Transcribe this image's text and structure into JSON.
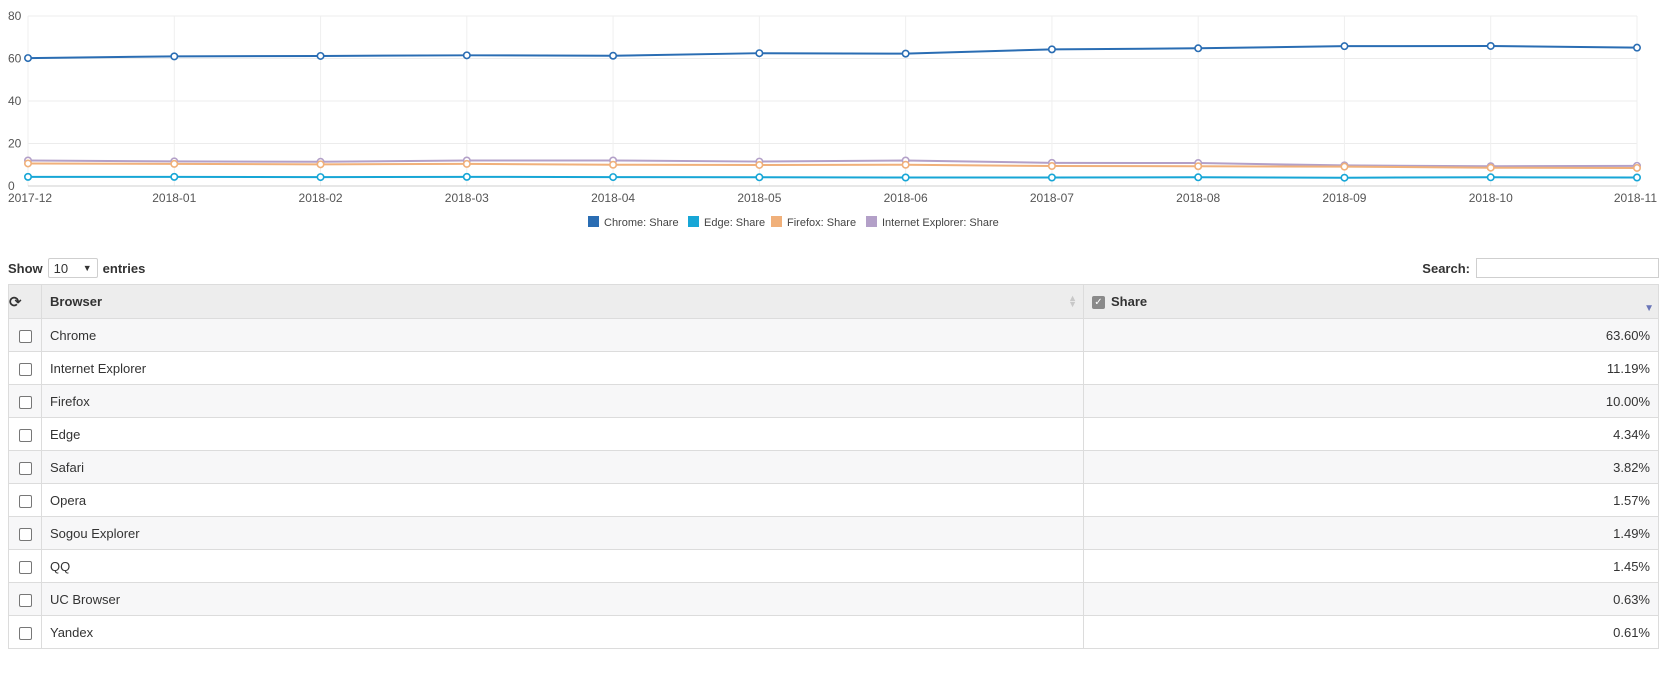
{
  "chart_data": {
    "type": "line",
    "x": [
      "2017-12",
      "2018-01",
      "2018-02",
      "2018-03",
      "2018-04",
      "2018-05",
      "2018-06",
      "2018-07",
      "2018-08",
      "2018-09",
      "2018-10",
      "2018-11"
    ],
    "ylim": [
      0,
      80
    ],
    "yticks": [
      "0",
      "20",
      "40",
      "60",
      "80"
    ],
    "grid": true,
    "legend_position": "bottom-center",
    "series": [
      {
        "name": "Chrome: Share",
        "color": "#2a6db3",
        "values": [
          60.2,
          61.0,
          61.2,
          61.5,
          61.3,
          62.5,
          62.3,
          64.3,
          64.8,
          65.8,
          65.9,
          65.1
        ]
      },
      {
        "name": "Edge: Share",
        "color": "#17a6d6",
        "values": [
          4.3,
          4.3,
          4.2,
          4.3,
          4.2,
          4.1,
          4.0,
          4.0,
          4.1,
          3.9,
          4.1,
          4.0
        ]
      },
      {
        "name": "Firefox: Share",
        "color": "#f0b07a",
        "values": [
          10.6,
          10.4,
          10.2,
          10.4,
          10.0,
          9.9,
          10.0,
          9.4,
          9.3,
          9.1,
          8.6,
          8.5
        ]
      },
      {
        "name": "Internet Explorer: Share",
        "color": "#b3a0c8",
        "values": [
          12.0,
          11.6,
          11.4,
          12.0,
          12.0,
          11.5,
          12.0,
          10.9,
          10.8,
          9.7,
          9.3,
          9.5
        ]
      }
    ]
  },
  "controls": {
    "show_label": "Show",
    "length_value": "10",
    "entries_label": "entries",
    "search_label": "Search:",
    "search_value": ""
  },
  "table": {
    "header_browser": "Browser",
    "header_share": "Share",
    "rows": [
      {
        "browser": "Chrome",
        "share": "63.60%"
      },
      {
        "browser": "Internet Explorer",
        "share": "11.19%"
      },
      {
        "browser": "Firefox",
        "share": "10.00%"
      },
      {
        "browser": "Edge",
        "share": "4.34%"
      },
      {
        "browser": "Safari",
        "share": "3.82%"
      },
      {
        "browser": "Opera",
        "share": "1.57%"
      },
      {
        "browser": "Sogou Explorer",
        "share": "1.49%"
      },
      {
        "browser": "QQ",
        "share": "1.45%"
      },
      {
        "browser": "UC Browser",
        "share": "0.63%"
      },
      {
        "browser": "Yandex",
        "share": "0.61%"
      }
    ]
  },
  "icons": {
    "refresh": "refresh-icon",
    "check": "checkbox-checked-icon",
    "sort_both": "sort-both-icon",
    "sort_desc": "sort-desc-icon"
  }
}
